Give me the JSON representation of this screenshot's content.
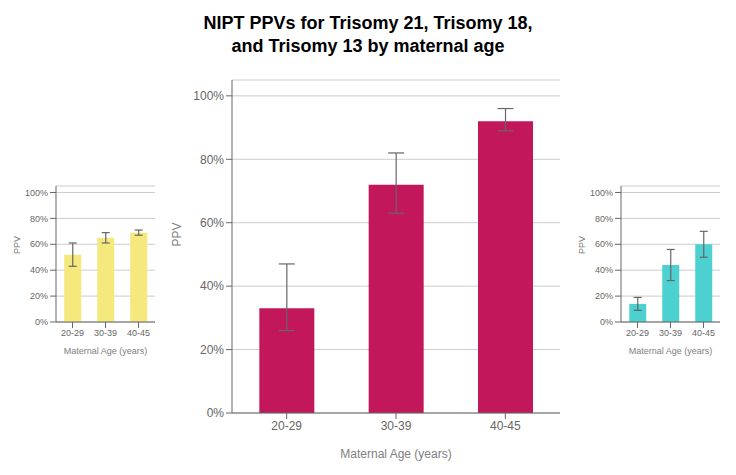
{
  "chart_data": [
    {
      "type": "bar",
      "title": "NIPT PPVs for Trisomy 21, Trisomy 18,\nand Trisomy 13 by maternal age",
      "xlabel": "Maternal Age (years)",
      "ylabel": "PPV",
      "categories": [
        "20-29",
        "30-39",
        "40-45"
      ],
      "values": [
        0.33,
        0.72,
        0.92
      ],
      "errors_low": [
        0.07,
        0.09,
        0.03
      ],
      "errors_high": [
        0.14,
        0.1,
        0.04
      ],
      "color": "#c2185b",
      "ylim": [
        0,
        1.05
      ],
      "yticks": [
        {
          "value": 0,
          "label": "0%"
        },
        {
          "value": 0.2,
          "label": "20%"
        },
        {
          "value": 0.4,
          "label": "40%"
        },
        {
          "value": 0.6,
          "label": "60%"
        },
        {
          "value": 0.8,
          "label": "80%"
        },
        {
          "value": 1.0,
          "label": "100%"
        }
      ],
      "grid": true
    },
    {
      "type": "bar",
      "xlabel": "Maternal Age (years)",
      "ylabel": "PPV",
      "categories": [
        "20-29",
        "30-39",
        "40-45"
      ],
      "values": [
        0.52,
        0.65,
        0.69
      ],
      "errors_low": [
        0.09,
        0.04,
        0.02
      ],
      "errors_high": [
        0.09,
        0.04,
        0.02
      ],
      "color": "#f5e87c",
      "ylim": [
        0,
        1.05
      ],
      "yticks": [
        {
          "value": 0,
          "label": "0%"
        },
        {
          "value": 0.2,
          "label": "20%"
        },
        {
          "value": 0.4,
          "label": "40%"
        },
        {
          "value": 0.6,
          "label": "60%"
        },
        {
          "value": 0.8,
          "label": "80%"
        },
        {
          "value": 1.0,
          "label": "100%"
        }
      ],
      "grid": true
    },
    {
      "type": "bar",
      "xlabel": "Maternal Age (years)",
      "ylabel": "PPV",
      "categories": [
        "20-29",
        "30-39",
        "40-45"
      ],
      "values": [
        0.14,
        0.44,
        0.6
      ],
      "errors_low": [
        0.05,
        0.12,
        0.1
      ],
      "errors_high": [
        0.05,
        0.12,
        0.1
      ],
      "color": "#4dd0d0",
      "ylim": [
        0,
        1.05
      ],
      "yticks": [
        {
          "value": 0,
          "label": "0%"
        },
        {
          "value": 0.2,
          "label": "20%"
        },
        {
          "value": 0.4,
          "label": "40%"
        },
        {
          "value": 0.6,
          "label": "60%"
        },
        {
          "value": 0.8,
          "label": "80%"
        },
        {
          "value": 1.0,
          "label": "100%"
        }
      ],
      "grid": true
    }
  ]
}
